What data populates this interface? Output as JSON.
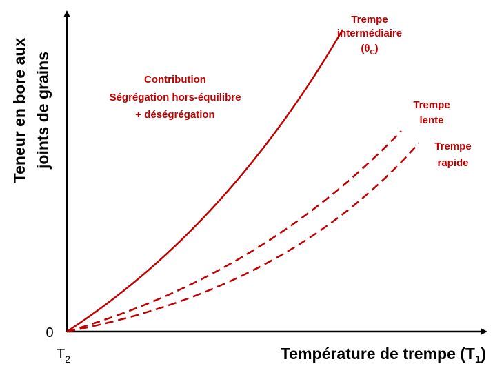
{
  "y_axis_label": [
    "Teneur en bore aux",
    "joints de grains"
  ],
  "origin_label": "0",
  "x_start_label": {
    "text": "T",
    "subscript": "2"
  },
  "x_axis_label": {
    "text": "Température de trempe (T",
    "subscript": "1",
    "suffix": ")"
  },
  "annotations": {
    "intermediate": {
      "lines": [
        "Trempe",
        "intermédiaire"
      ],
      "theta": {
        "text": "(θ",
        "subscript": "C",
        "suffix": ")"
      }
    },
    "contribution": [
      "Contribution",
      "Ségrégation hors-équilibre",
      "+ déségrégation"
    ],
    "slow": [
      "Trempe",
      "lente"
    ],
    "fast": [
      "Trempe",
      "rapide"
    ]
  }
}
